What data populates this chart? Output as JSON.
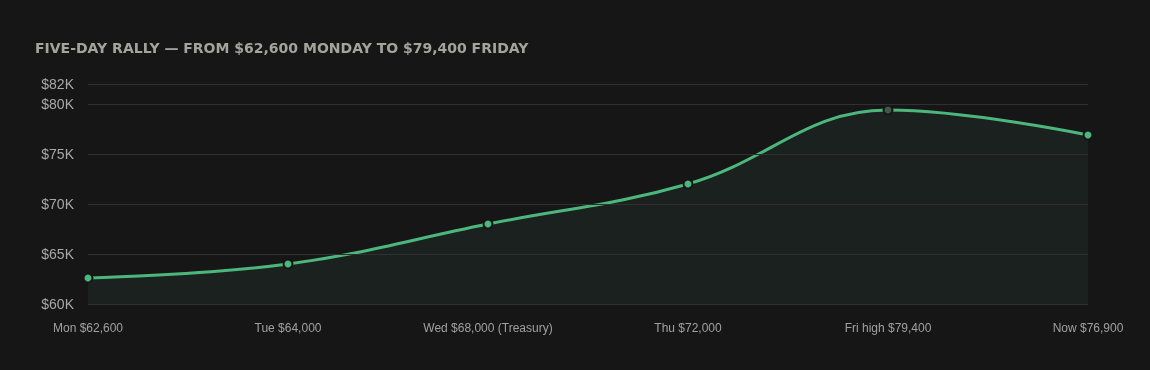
{
  "chart_data": {
    "type": "area",
    "title": "FIVE-DAY RALLY — FROM $62,600 MONDAY TO $79,400 FRIDAY",
    "categories": [
      "Mon $62,600",
      "Tue $64,000",
      "Wed $68,000 (Treasury)",
      "Thu $72,000",
      "Fri high $79,400",
      "Now $76,900"
    ],
    "series": [
      {
        "color": "#4cb77c",
        "values": [
          62600,
          64000,
          68000,
          72000,
          79400,
          76900
        ],
        "colors": [
          "#4cb77c",
          "#4cb77c",
          "#4cb77c",
          "#4cb77c",
          "#3d5a48",
          "#4cb77c"
        ]
      }
    ],
    "ylim": [
      60000,
      82000
    ],
    "yticks": [
      {
        "value": 60000,
        "label": "$60K"
      },
      {
        "value": 65000,
        "label": "$65K"
      },
      {
        "value": 70000,
        "label": "$70K"
      },
      {
        "value": 75000,
        "label": "$75K"
      },
      {
        "value": 80000,
        "label": "$80K"
      },
      {
        "value": 82000,
        "label": "$82K"
      }
    ],
    "grid": "y",
    "marker": "circle"
  }
}
